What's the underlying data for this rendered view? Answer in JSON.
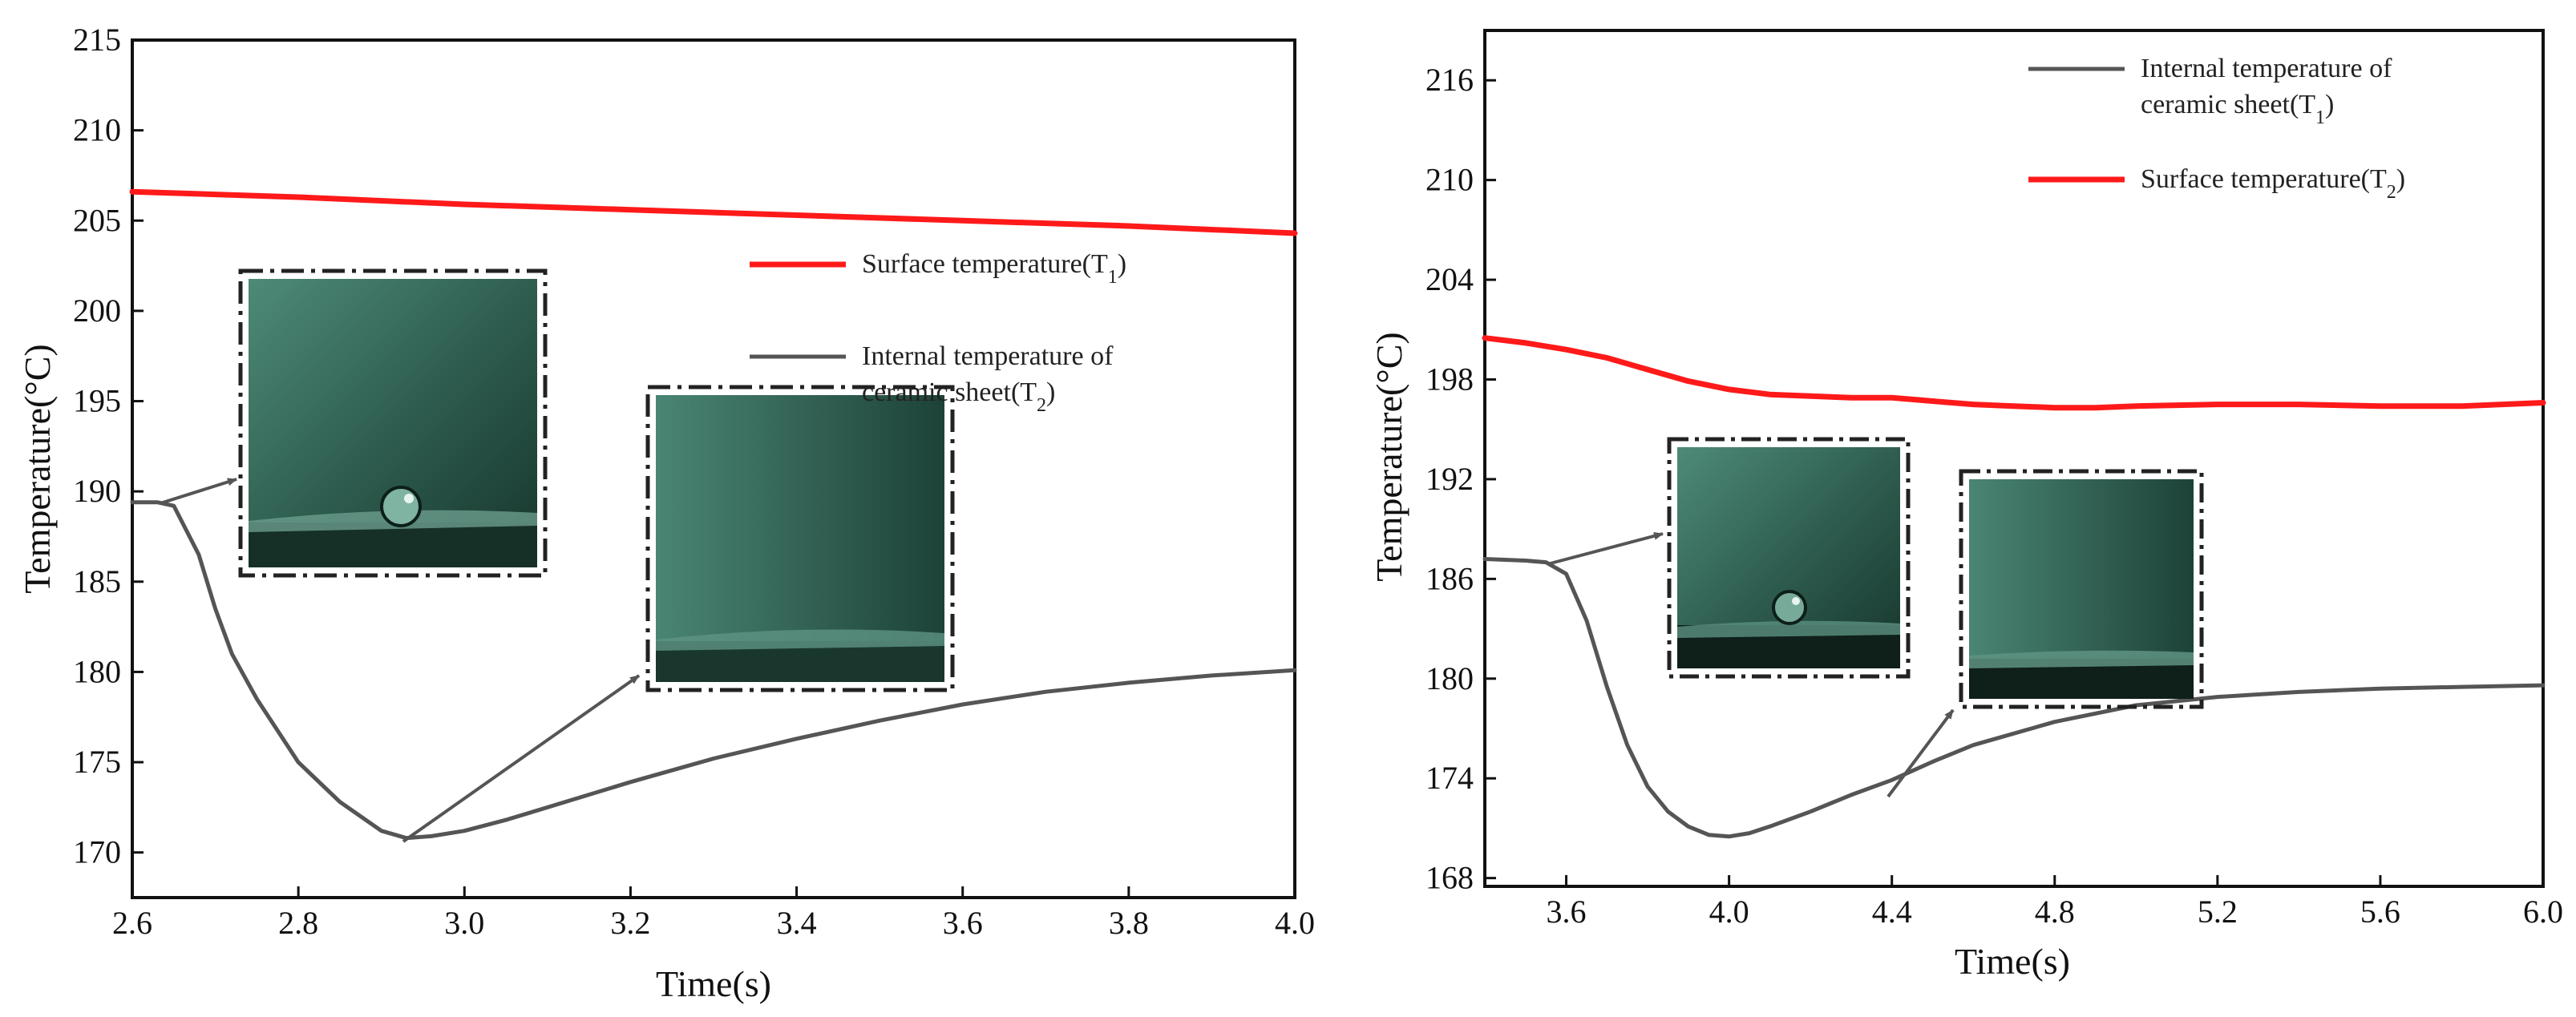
{
  "chart_data": [
    {
      "type": "line",
      "xlabel": "Time(s)",
      "ylabel": "Temperature(°C)",
      "xlim": [
        2.6,
        4.0
      ],
      "ylim": [
        167.5,
        215
      ],
      "x_ticks": [
        "2.6",
        "2.8",
        "3.0",
        "3.2",
        "3.4",
        "3.6",
        "3.8",
        "4.0"
      ],
      "y_ticks": [
        "170",
        "175",
        "180",
        "185",
        "190",
        "195",
        "200",
        "205",
        "210",
        "215"
      ],
      "legend": [
        {
          "name": "Surface temperature",
          "sub": "1",
          "lines": [
            "Surface temperature(T",
            ")"
          ],
          "color": "#ff1a1a"
        },
        {
          "name": "Internal temperature of ceramic sheet",
          "sub": "2",
          "lines": [
            "Internal temperature of",
            "ceramic sheet(T",
            ")"
          ],
          "color": "#555555"
        }
      ],
      "series": [
        {
          "name": "Surface temperature",
          "color": "#ff1a1a",
          "x": [
            2.6,
            2.8,
            3.0,
            3.2,
            3.4,
            3.6,
            3.8,
            4.0
          ],
          "y": [
            206.6,
            206.3,
            205.9,
            205.6,
            205.3,
            205.0,
            204.7,
            204.3
          ]
        },
        {
          "name": "Internal temperature of ceramic sheet",
          "color": "#555555",
          "x": [
            2.6,
            2.63,
            2.65,
            2.68,
            2.7,
            2.72,
            2.75,
            2.8,
            2.85,
            2.9,
            2.93,
            2.96,
            3.0,
            3.05,
            3.1,
            3.2,
            3.3,
            3.4,
            3.5,
            3.6,
            3.7,
            3.8,
            3.9,
            4.0
          ],
          "y": [
            189.4,
            189.4,
            189.2,
            186.5,
            183.5,
            181.0,
            178.5,
            175.0,
            172.8,
            171.2,
            170.8,
            170.9,
            171.2,
            171.8,
            172.5,
            173.9,
            175.2,
            176.3,
            177.3,
            178.2,
            178.9,
            179.4,
            179.8,
            180.1
          ]
        }
      ]
    },
    {
      "type": "line",
      "xlabel": "Time(s)",
      "ylabel": "Temperature(°C)",
      "xlim": [
        3.4,
        6.0
      ],
      "ylim": [
        167.5,
        219
      ],
      "x_ticks": [
        "3.6",
        "4.0",
        "4.4",
        "4.8",
        "5.2",
        "5.6",
        "6.0"
      ],
      "y_ticks": [
        "168",
        "174",
        "180",
        "186",
        "192",
        "198",
        "204",
        "210",
        "216"
      ],
      "legend": [
        {
          "name": "Internal temperature of ceramic sheet",
          "sub": "1",
          "lines": [
            "Internal temperature of",
            "ceramic sheet(T",
            ")"
          ],
          "color": "#555555"
        },
        {
          "name": "Surface temperature",
          "sub": "2",
          "lines": [
            "Surface temperature(T",
            ")"
          ],
          "color": "#ff1a1a"
        }
      ],
      "series": [
        {
          "name": "Surface temperature",
          "color": "#ff1a1a",
          "x": [
            3.4,
            3.5,
            3.6,
            3.7,
            3.8,
            3.9,
            4.0,
            4.1,
            4.2,
            4.3,
            4.4,
            4.5,
            4.6,
            4.7,
            4.8,
            4.9,
            5.0,
            5.2,
            5.4,
            5.6,
            5.8,
            6.0
          ],
          "y": [
            200.5,
            200.2,
            199.8,
            199.3,
            198.6,
            197.9,
            197.4,
            197.1,
            197.0,
            196.9,
            196.9,
            196.7,
            196.5,
            196.4,
            196.3,
            196.3,
            196.4,
            196.5,
            196.5,
            196.4,
            196.4,
            196.6
          ]
        },
        {
          "name": "Internal temperature of ceramic sheet",
          "color": "#555555",
          "x": [
            3.4,
            3.5,
            3.55,
            3.6,
            3.65,
            3.7,
            3.75,
            3.8,
            3.85,
            3.9,
            3.95,
            4.0,
            4.05,
            4.1,
            4.2,
            4.3,
            4.4,
            4.5,
            4.6,
            4.8,
            5.0,
            5.2,
            5.4,
            5.6,
            5.8,
            6.0
          ],
          "y": [
            187.2,
            187.1,
            187.0,
            186.3,
            183.5,
            179.5,
            176.0,
            173.5,
            172.0,
            171.1,
            170.6,
            170.5,
            170.7,
            171.1,
            172.0,
            173.0,
            173.9,
            175.0,
            176.0,
            177.4,
            178.4,
            178.9,
            179.2,
            179.4,
            179.5,
            179.6
          ]
        }
      ]
    }
  ]
}
